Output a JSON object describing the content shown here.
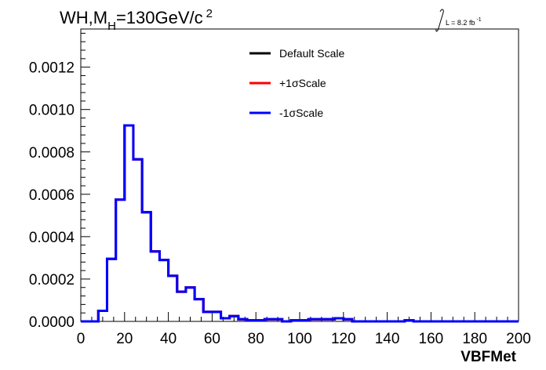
{
  "chart_data": {
    "type": "line",
    "style": "step-histogram",
    "title_main": "WH,M",
    "title_sub": "H",
    "title_rest": "=130GeV/c",
    "title_sup": "2",
    "lumi_label": "L = 8.2 fb",
    "lumi_sup": "-1",
    "xlabel": "VBFMet",
    "ylabel": "",
    "xlim": [
      0,
      200
    ],
    "ylim": [
      0,
      0.00138
    ],
    "x_ticks": [
      "0",
      "20",
      "40",
      "60",
      "80",
      "100",
      "120",
      "140",
      "160",
      "180",
      "200"
    ],
    "y_ticks": [
      "0.0000",
      "0.0002",
      "0.0004",
      "0.0006",
      "0.0008",
      "0.0010",
      "0.0012"
    ],
    "grid": false,
    "legend_position": "top-center",
    "bin_edges": [
      0,
      4,
      8,
      12,
      16,
      20,
      24,
      28,
      32,
      36,
      40,
      44,
      48,
      52,
      56,
      60,
      64,
      68,
      72,
      76,
      80,
      84,
      88,
      92,
      96,
      100,
      104,
      108,
      112,
      116,
      120,
      124,
      128,
      132,
      136,
      140,
      144,
      148,
      152,
      156,
      160,
      164,
      168,
      172,
      176,
      180,
      184,
      188,
      192,
      196,
      200
    ],
    "series": [
      {
        "name": "Default Scale",
        "color": "#000000",
        "values": [
          0,
          0,
          5e-05,
          0.000295,
          0.000575,
          0.000925,
          0.000765,
          0.000515,
          0.00033,
          0.00029,
          0.000215,
          0.00014,
          0.00016,
          0.000105,
          4.5e-05,
          4.5e-05,
          1.5e-05,
          2.5e-05,
          1e-05,
          5e-06,
          5e-06,
          1e-05,
          1e-05,
          0,
          5e-06,
          5e-06,
          1e-05,
          1e-05,
          1e-05,
          1.5e-05,
          1e-05,
          0,
          0,
          0,
          0,
          0,
          0,
          5e-06,
          0,
          0,
          0,
          0,
          0,
          0,
          0,
          0,
          0,
          0,
          0,
          0
        ]
      },
      {
        "name": "+1σScale",
        "color": "#ff0000",
        "values": [
          0,
          0,
          5e-05,
          0.000295,
          0.000575,
          0.000925,
          0.000765,
          0.000515,
          0.00033,
          0.00029,
          0.000215,
          0.00014,
          0.00016,
          0.000105,
          4.5e-05,
          4.5e-05,
          1.5e-05,
          2.5e-05,
          1e-05,
          5e-06,
          5e-06,
          1e-05,
          1e-05,
          0,
          5e-06,
          5e-06,
          1e-05,
          1e-05,
          1e-05,
          1.5e-05,
          1e-05,
          0,
          0,
          0,
          0,
          0,
          0,
          5e-06,
          0,
          0,
          0,
          0,
          0,
          0,
          0,
          0,
          0,
          0,
          0,
          0
        ]
      },
      {
        "name": "-1σScale",
        "color": "#0000ff",
        "values": [
          0,
          0,
          5e-05,
          0.000295,
          0.000575,
          0.000925,
          0.000765,
          0.000515,
          0.00033,
          0.00029,
          0.000215,
          0.00014,
          0.00016,
          0.000105,
          4.5e-05,
          4.5e-05,
          1.5e-05,
          2.5e-05,
          1e-05,
          5e-06,
          5e-06,
          1e-05,
          1e-05,
          0,
          5e-06,
          5e-06,
          1e-05,
          1e-05,
          1e-05,
          1.5e-05,
          1e-05,
          0,
          0,
          0,
          0,
          0,
          0,
          5e-06,
          0,
          0,
          0,
          0,
          0,
          0,
          0,
          0,
          0,
          0,
          0,
          0
        ]
      }
    ]
  }
}
